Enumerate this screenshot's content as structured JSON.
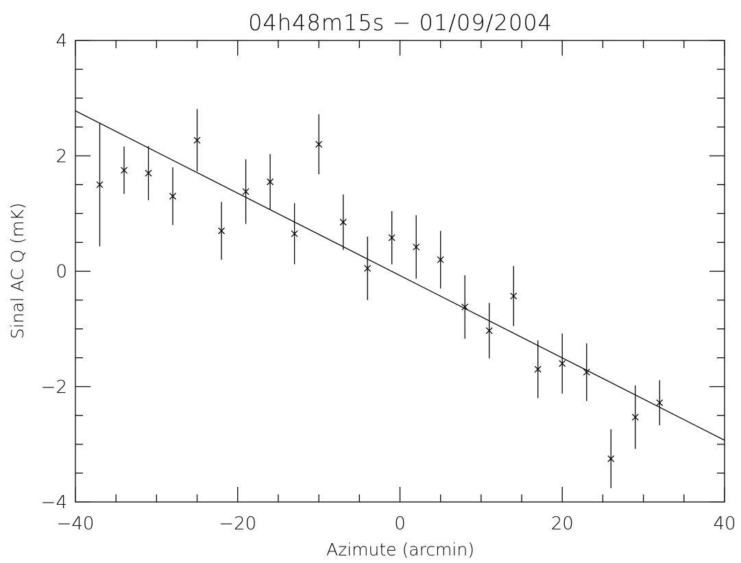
{
  "chart_data": {
    "type": "scatter",
    "title": "04h48m15s − 01/09/2004",
    "xlabel": "Azimute (arcmin)",
    "ylabel": "Sinal AC Q (mK)",
    "xlim": [
      -40,
      40
    ],
    "ylim": [
      -4,
      4
    ],
    "x_ticks": [
      -40,
      -20,
      0,
      20,
      40
    ],
    "x_tick_labels": [
      "−40",
      "−20",
      "0",
      "20",
      "40"
    ],
    "y_ticks": [
      -4,
      -2,
      0,
      2,
      4
    ],
    "y_tick_labels": [
      "−4",
      "−2",
      "0",
      "2",
      "4"
    ],
    "grid": false,
    "series": [
      {
        "marker": "x",
        "x": [
          -37,
          -34,
          -31,
          -28,
          -25,
          -22,
          -19,
          -16,
          -13,
          -10,
          -7,
          -4,
          -1,
          2,
          5,
          8,
          11,
          14,
          17,
          20,
          23,
          26,
          29,
          32
        ],
        "y": [
          1.5,
          1.75,
          1.7,
          1.3,
          2.27,
          0.7,
          1.38,
          1.55,
          0.65,
          2.2,
          0.85,
          0.05,
          0.58,
          0.42,
          0.2,
          -0.62,
          -1.03,
          -0.43,
          -1.7,
          -1.6,
          -1.75,
          -3.25,
          -2.53,
          -2.28
        ],
        "err": [
          1.07,
          0.41,
          0.47,
          0.5,
          0.54,
          0.5,
          0.56,
          0.48,
          0.53,
          0.52,
          0.48,
          0.55,
          0.46,
          0.55,
          0.5,
          0.55,
          0.48,
          0.52,
          0.5,
          0.52,
          0.5,
          0.51,
          0.55,
          0.39
        ]
      }
    ],
    "fit_line": {
      "x": [
        -40,
        40
      ],
      "y": [
        2.78,
        -2.93
      ]
    }
  }
}
